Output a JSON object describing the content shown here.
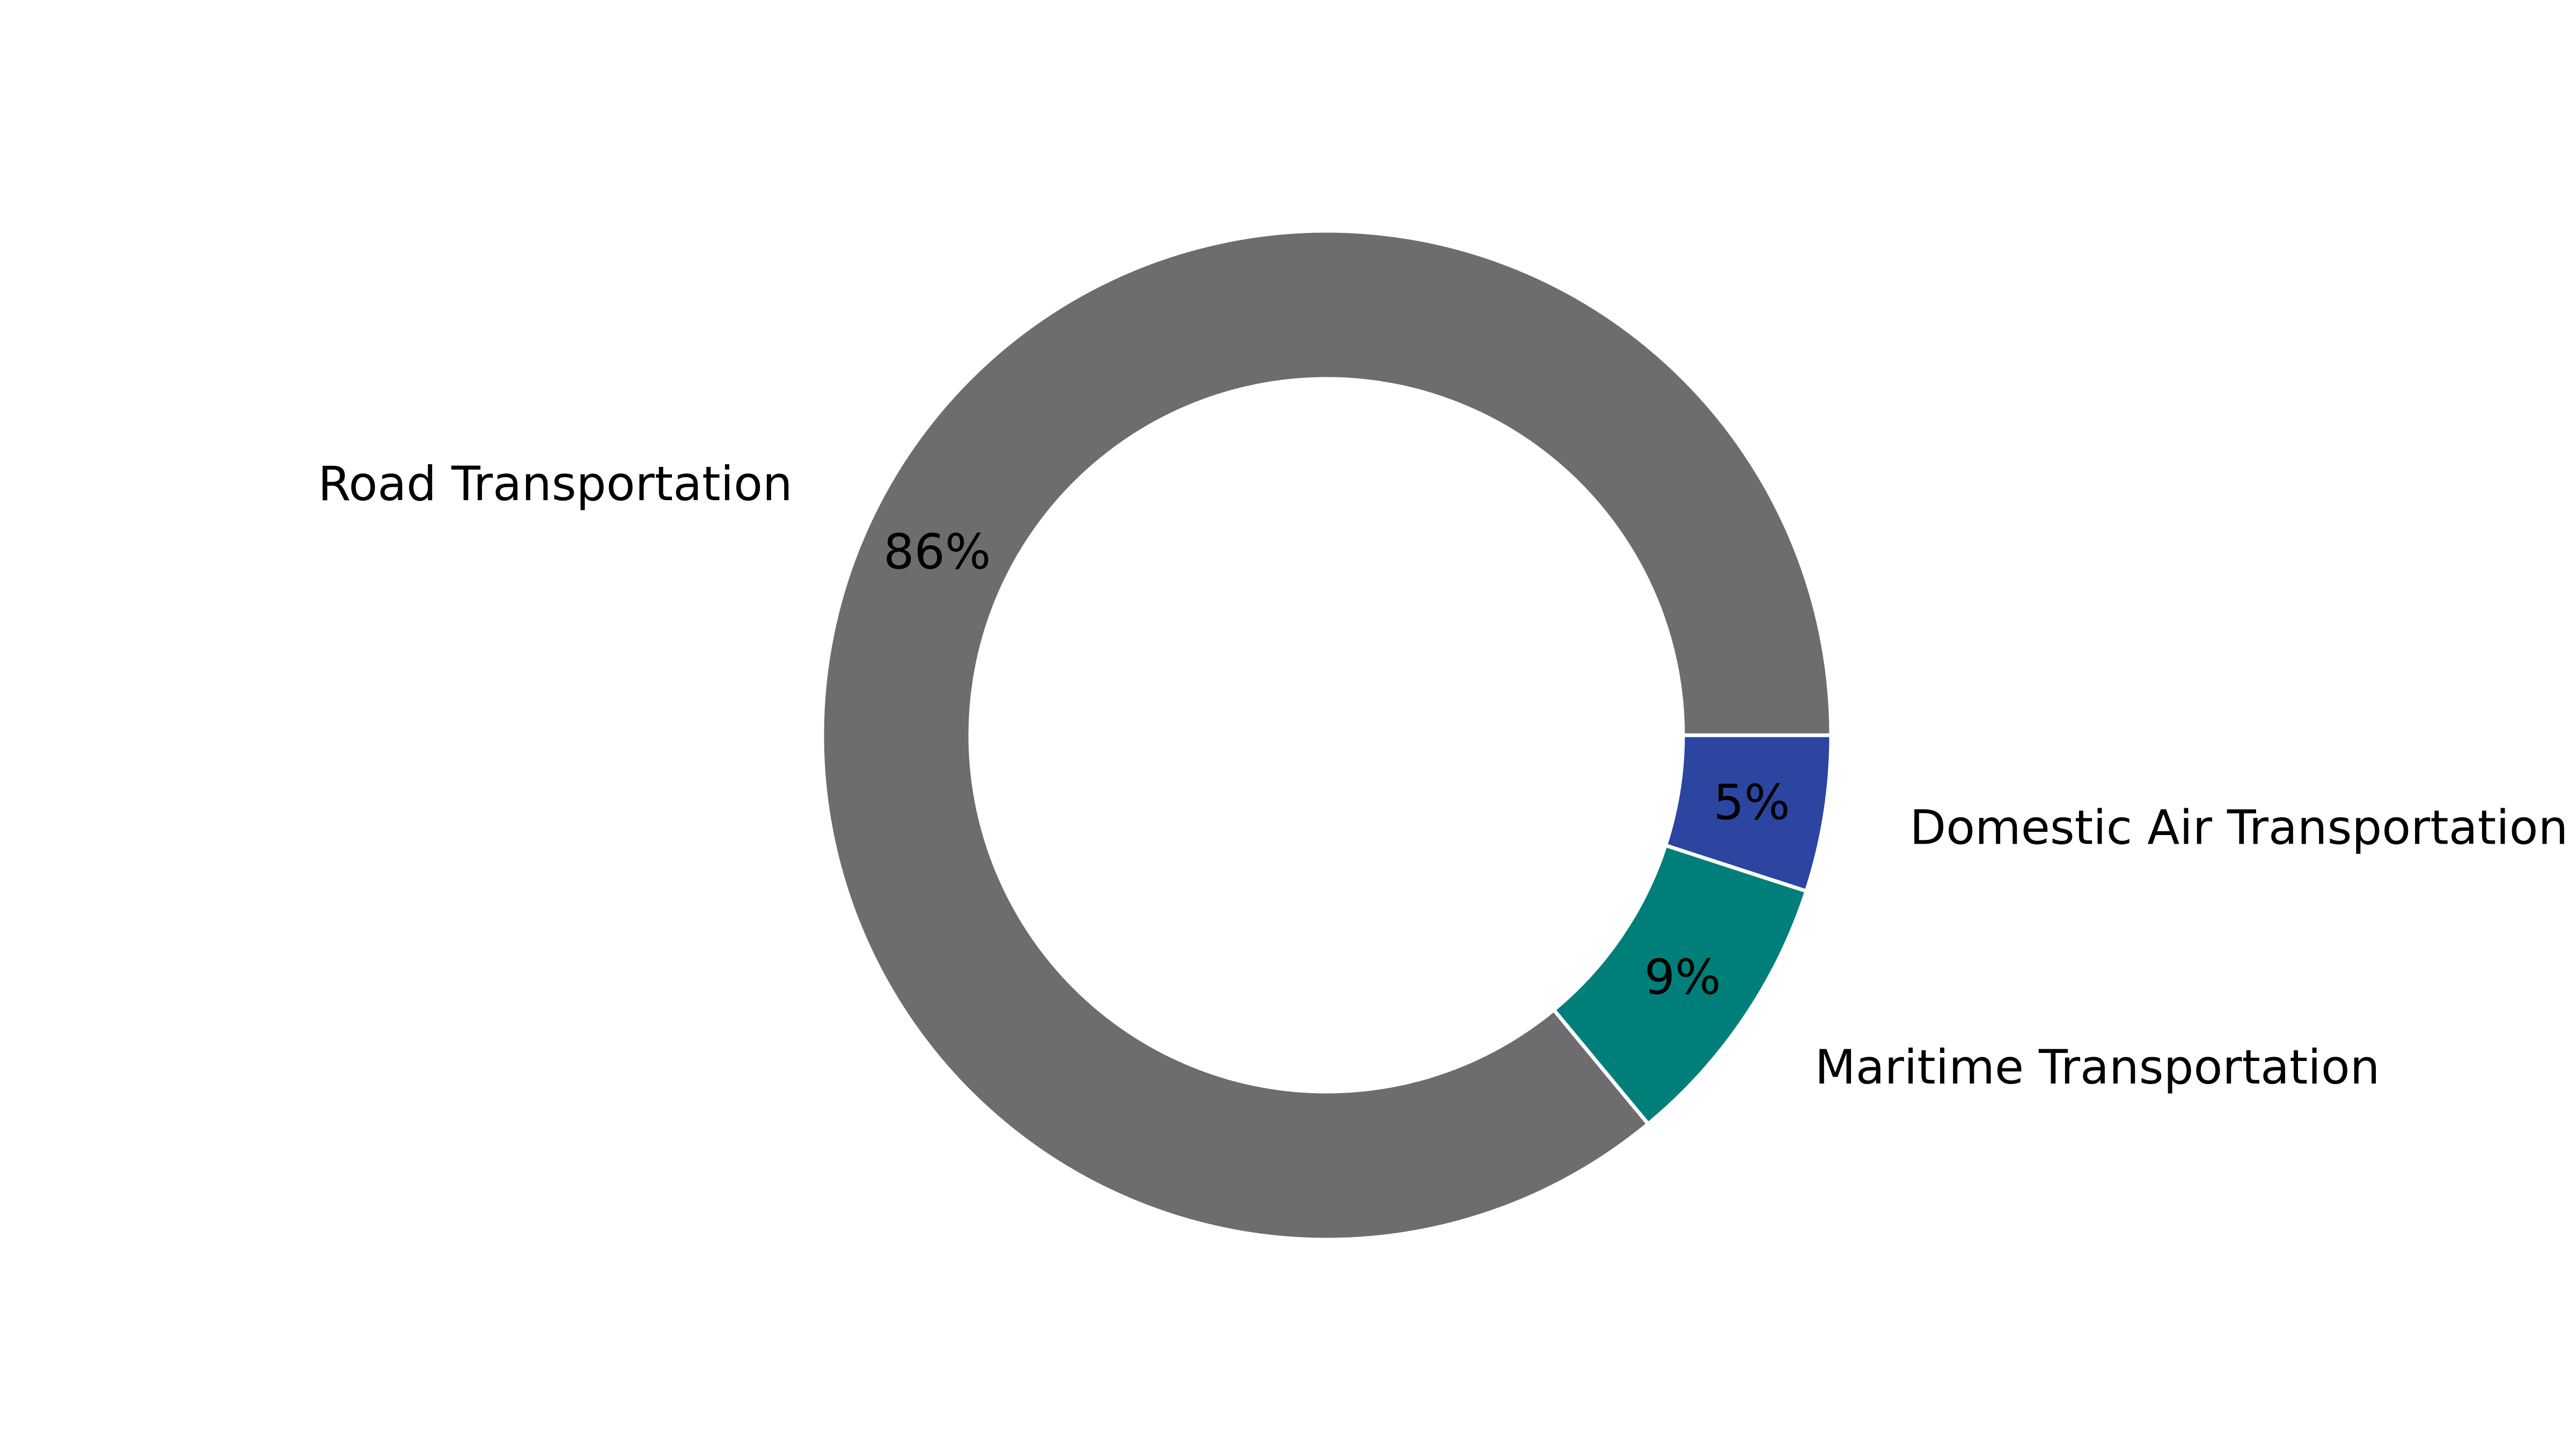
{
  "chart_data": {
    "type": "pie",
    "style": "donut",
    "start": "east, counter-clockwise",
    "slices": [
      {
        "label": "Road Transportation",
        "value": 86,
        "pct_label": "86%",
        "color": "#6d6d6f"
      },
      {
        "label": "Maritime Transportation",
        "value": 9,
        "pct_label": "9%",
        "color": "#007f7a"
      },
      {
        "label": "Domestic Air Transportation",
        "value": 5,
        "pct_label": "5%",
        "color": "#2b45a0"
      }
    ],
    "slice_border_color": "#ffffff"
  }
}
